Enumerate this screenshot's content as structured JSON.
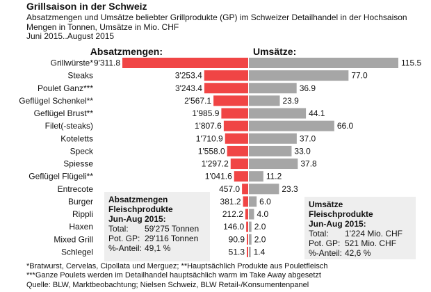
{
  "title": "Grillsaison in der Schweiz",
  "subtitle_lines": [
    "Absatzmengen und Umsätze beliebter Grillprodukte (GP) im Schweizer Detailhandel in der Hochsaison",
    "Mengen in Tonnen, Umsätze in Mio. CHF",
    "Juni 2015..August 2015"
  ],
  "chart_data": {
    "type": "bar",
    "layout": "butterfly",
    "categories": [
      "Grillwürste*",
      "Steaks",
      "Poulet Ganz***",
      "Geflügel Schenkel**",
      "Geflügel Brust**",
      "Filet(-steaks)",
      "Koteletts",
      "Speck",
      "Spiesse",
      "Geflügel Flügeli**",
      "Entrecote",
      "Burger",
      "Rippli",
      "Haxen",
      "Mixed Grill",
      "Schlegel"
    ],
    "series": [
      {
        "name": "Absatzmengen:",
        "values": [
          9311.8,
          3253.4,
          3243.4,
          2567.1,
          1985.9,
          1807.6,
          1710.9,
          1558.0,
          1297.2,
          1041.6,
          457.0,
          381.2,
          212.2,
          146.0,
          90.9,
          51.3
        ],
        "labels": [
          "9'311.8",
          "3'253.4",
          "3'243.4",
          "2'567.1",
          "1'985.9",
          "1'807.6",
          "1'710.9",
          "1'558.0",
          "1'297.2",
          "1'041.6",
          "457.0",
          "381.2",
          "212.2",
          "146.0",
          "90.9",
          "51.3"
        ],
        "color": "#f04545",
        "direction": "left"
      },
      {
        "name": "Umsätze:",
        "values": [
          115.5,
          77.0,
          36.9,
          23.9,
          44.1,
          66.0,
          37.0,
          33.0,
          37.8,
          11.2,
          23.3,
          6.0,
          4.0,
          2.0,
          2.0,
          1.4
        ],
        "labels": [
          "115.5",
          "77.0",
          "36.9",
          "23.9",
          "44.1",
          "66.0",
          "37.0",
          "33.0",
          "37.8",
          "11.2",
          "23.3",
          "6.0",
          "4.0",
          "2.0",
          "2.0",
          "1.4"
        ],
        "color": "#a6a6a6",
        "direction": "right"
      }
    ]
  },
  "box_left": {
    "title_lines": [
      "Absatzmengen",
      "Fleischprodukte",
      "Jun-Aug 2015:"
    ],
    "rows": [
      {
        "k": "Total:",
        "v": "59'275 Tonnen"
      },
      {
        "k": "Pot. GP:",
        "v": "29'116 Tonnen"
      },
      {
        "k": "%-Anteil:",
        "v": "49,1 %"
      }
    ]
  },
  "box_right": {
    "title_lines": [
      "Umsätze",
      "Fleischprodukte",
      "Jun-Aug 2015:"
    ],
    "rows": [
      {
        "k": "Total:",
        "v": "1'224 Mio. CHF"
      },
      {
        "k": "Pot. GP:",
        "v": "521 Mio. CHF"
      },
      {
        "k": "%-Anteil:",
        "v": "42,6 %"
      }
    ]
  },
  "footnotes": [
    "*Bratwurst, Cervelas, Cipollata und Merguez; **Hauptsächlich Produkte aus Pouletfleisch",
    "***Ganze Poulets werden im Detailhandel hauptsächlich warm im Take Away abgesetzt",
    "Quelle: BLW, Marktbeobachtung; Nielsen Schweiz, BLW Retail-/Konsumentenpanel"
  ]
}
